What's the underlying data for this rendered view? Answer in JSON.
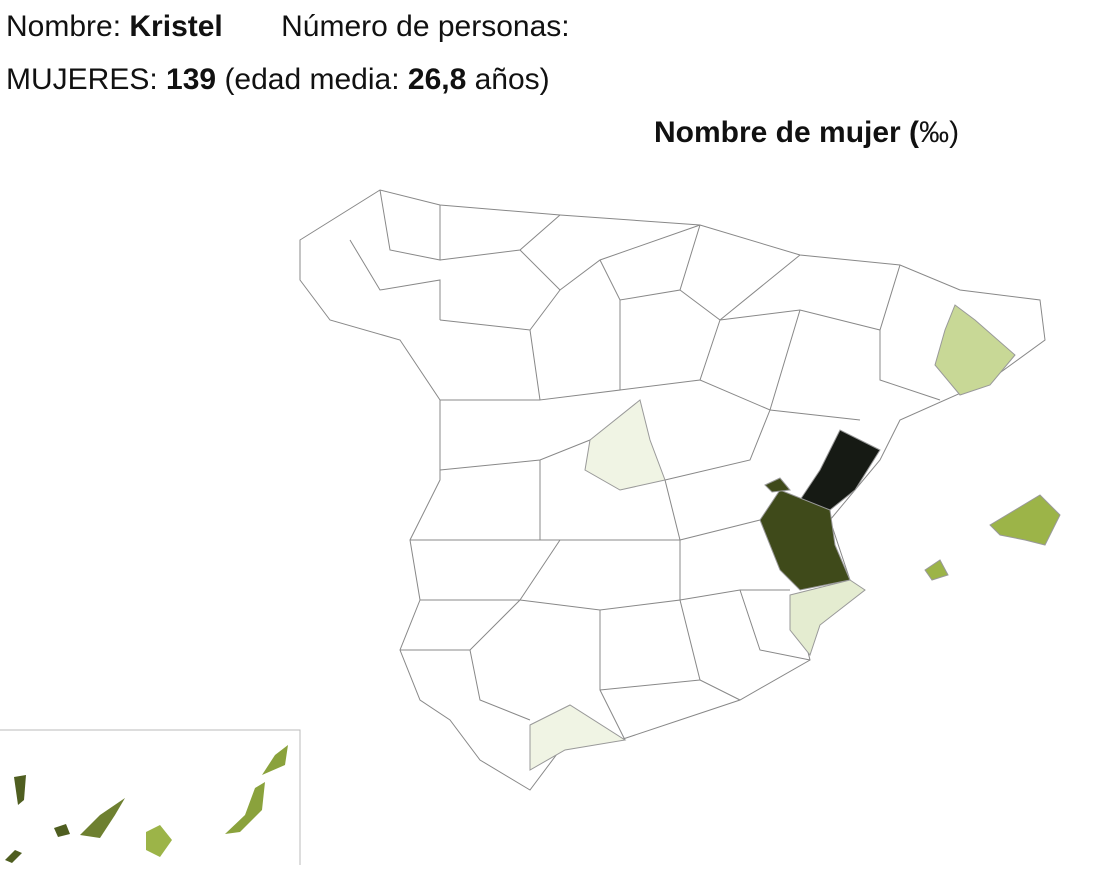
{
  "header": {
    "line1": {
      "label": "Nombre:",
      "name": "Kristel",
      "count_label": "Número de personas:"
    },
    "line2": {
      "label": "MUJERES:",
      "count": "139",
      "age_open": "(edad media:",
      "age": "26,8",
      "age_close": "años)"
    }
  },
  "map": {
    "title_bold": "Nombre de mujer (",
    "title_rest": "‰)"
  }
}
